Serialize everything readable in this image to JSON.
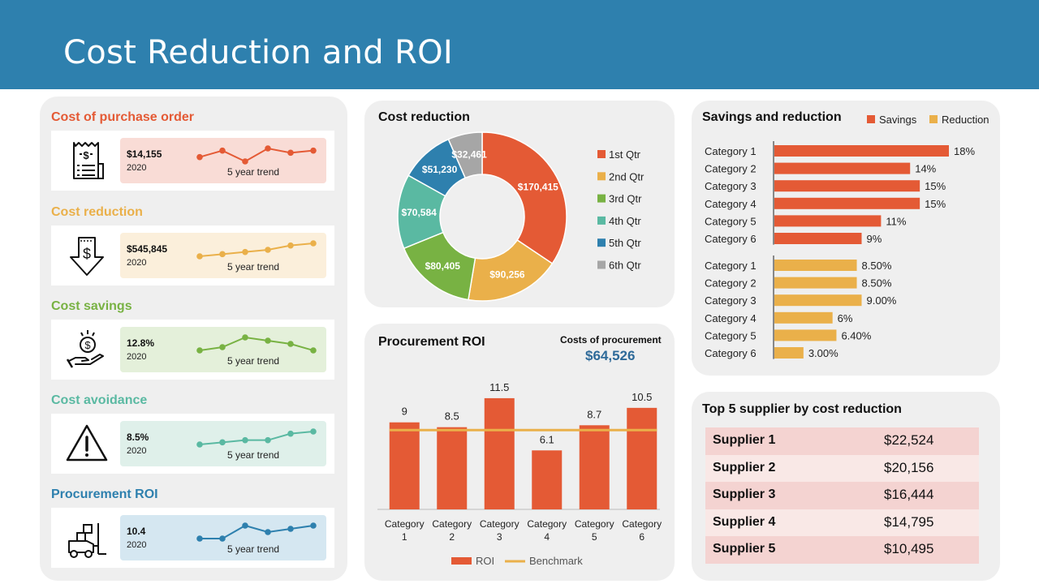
{
  "header": {
    "title": "Cost Reduction and ROI"
  },
  "colors": {
    "header": "#2e80ae",
    "orange": "#e45a35",
    "yellow": "#eab04a",
    "green": "#78b243",
    "teal": "#5ab9a2",
    "blue": "#2e80ae",
    "gray": "#a6a6a6"
  },
  "kpis": [
    {
      "title": "Cost of purchase order",
      "value": "$14,155",
      "year": "2020",
      "trend_label": "5 year trend",
      "title_color": "#e45a35",
      "line_color": "#e45a35",
      "box_color": "#f9dcd6",
      "trend": [
        3,
        6,
        1,
        7,
        5,
        6
      ],
      "icon": "receipt-icon"
    },
    {
      "title": "Cost reduction",
      "value": "$545,845",
      "year": "2020",
      "trend_label": "5 year trend",
      "title_color": "#eab04a",
      "line_color": "#eab04a",
      "box_color": "#fbefdb",
      "trend": [
        2,
        3,
        4,
        5,
        7,
        8
      ],
      "icon": "down-arrow-dollar-icon"
    },
    {
      "title": "Cost savings",
      "value": "12.8%",
      "year": "2020",
      "trend_label": "5 year trend",
      "title_color": "#78b243",
      "line_color": "#78b243",
      "box_color": "#e4f0da",
      "trend": [
        3,
        4,
        7,
        6,
        5,
        3
      ],
      "icon": "hand-coin-icon"
    },
    {
      "title": "Cost avoidance",
      "value": "8.5%",
      "year": "2020",
      "trend_label": "5 year trend",
      "title_color": "#5ab9a2",
      "line_color": "#5ab9a2",
      "box_color": "#dff0ea",
      "trend": [
        2,
        2.5,
        3,
        3,
        4.5,
        5
      ],
      "icon": "warning-icon"
    },
    {
      "title": "Procurement ROI",
      "value": "10.4",
      "year": "2020",
      "trend_label": "5 year trend",
      "title_color": "#2e80ae",
      "line_color": "#2e80ae",
      "box_color": "#d5e7f1",
      "trend": [
        3,
        3,
        5,
        4,
        4.5,
        5
      ],
      "icon": "forklift-icon"
    }
  ],
  "cost_reduction": {
    "title": "Cost reduction"
  },
  "procurement_roi": {
    "title": "Procurement ROI",
    "costs_label": "Costs of procurement",
    "costs_value": "$64,526"
  },
  "savings_panel": {
    "title": "Savings and reduction"
  },
  "suppliers": {
    "title": "Top 5 supplier by cost reduction",
    "rows": [
      {
        "name": "Supplier 1",
        "amount": "$22,524"
      },
      {
        "name": "Supplier 2",
        "amount": "$20,156"
      },
      {
        "name": "Supplier 3",
        "amount": "$16,444"
      },
      {
        "name": "Supplier 4",
        "amount": "$14,795"
      },
      {
        "name": "Supplier 5",
        "amount": "$10,495"
      }
    ]
  },
  "chart_data": [
    {
      "type": "pie",
      "title": "Cost reduction",
      "categories": [
        "1st Qtr",
        "2nd Qtr",
        "3rd Qtr",
        "4th Qtr",
        "5th Qtr",
        "6th Qtr"
      ],
      "values": [
        170415,
        90256,
        80405,
        70584,
        51230,
        32461
      ],
      "labels": [
        "$170,415",
        "$90,256",
        "$80,405",
        "$70,584",
        "$51,230",
        "$32,461"
      ],
      "colors": [
        "#e45a35",
        "#eab04a",
        "#78b243",
        "#5ab9a2",
        "#2e80ae",
        "#a6a6a6"
      ],
      "donut": true
    },
    {
      "type": "bar",
      "title": "Procurement ROI",
      "categories": [
        "Category 1",
        "Category 2",
        "Category 3",
        "Category 4",
        "Category 5",
        "Category 6"
      ],
      "series": [
        {
          "name": "ROI",
          "values": [
            9,
            8.5,
            11.5,
            6.1,
            8.7,
            10.5
          ],
          "color": "#e45a35"
        },
        {
          "name": "Benchmark",
          "values": [
            8.2,
            8.2,
            8.2,
            8.2,
            8.2,
            8.2
          ],
          "color": "#eab04a",
          "kind": "line"
        }
      ],
      "data_labels": [
        "9",
        "8.5",
        "11.5",
        "6.1",
        "8.7",
        "10.5"
      ],
      "ylim": [
        0,
        12.5
      ]
    },
    {
      "type": "bar",
      "orientation": "horizontal",
      "title": "Savings and reduction",
      "legend": [
        "Savings",
        "Reduction"
      ],
      "categories": [
        "Category 1",
        "Category 2",
        "Category 3",
        "Category 4",
        "Category 5",
        "Category 6"
      ],
      "series": [
        {
          "name": "Savings",
          "values": [
            18,
            14,
            15,
            15,
            11,
            9
          ],
          "labels": [
            "18%",
            "14%",
            "15%",
            "15%",
            "11%",
            "9%"
          ],
          "color": "#e45a35"
        },
        {
          "name": "Reduction",
          "values": [
            8.5,
            8.5,
            9,
            6,
            6.4,
            3
          ],
          "labels": [
            "8.50%",
            "8.50%",
            "9.00%",
            "6%",
            "6.40%",
            "3.00%"
          ],
          "color": "#eab04a"
        }
      ],
      "xlim": [
        0,
        20
      ]
    }
  ]
}
